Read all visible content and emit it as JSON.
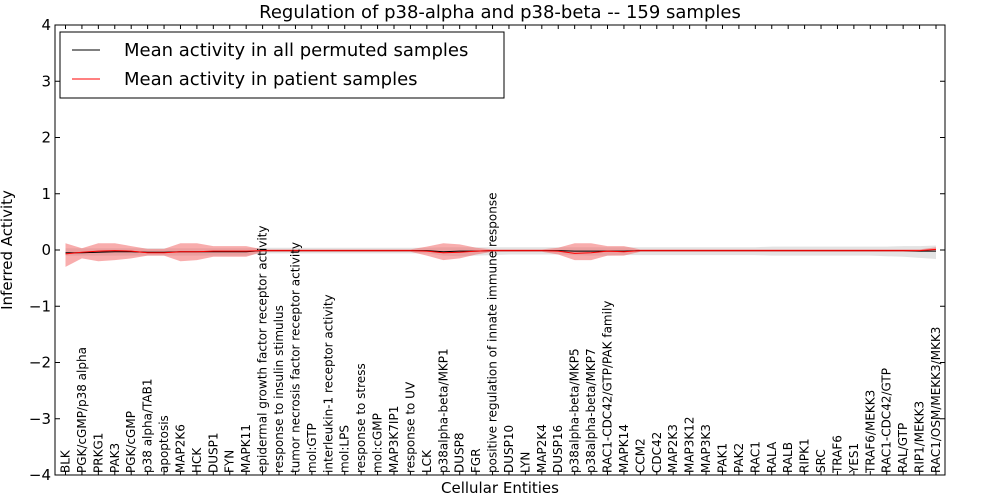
{
  "chart_data": {
    "type": "line",
    "title": "Regulation of p38-alpha and p38-beta -- 159 samples",
    "xlabel": "Cellular Entities",
    "ylabel": "Inferred Activity",
    "ylim": [
      -4,
      4
    ],
    "yticks": [
      "4",
      "3",
      "2",
      "1",
      "0",
      "−1",
      "−2",
      "−3",
      "−4"
    ],
    "grid": false,
    "legend_position": "top-left",
    "categories": [
      "BLK",
      "PGK/cGMP/p38 alpha",
      "PRKG1",
      "PAK3",
      "PGK/cGMP",
      "p38 alpha/TAB1",
      "apoptosis",
      "MAP2K6",
      "HCK",
      "DUSP1",
      "FYN",
      "MAPK11",
      "epidermal growth factor receptor activity",
      "response to insulin stimulus",
      "tumor necrosis factor receptor activity",
      "mol:GTP",
      "interleukin-1 receptor activity",
      "mol:LPS",
      "response to stress",
      "mol:cGMP",
      "MAP3K7IP1",
      "response to UV",
      "LCK",
      "p38alpha-beta/MKP1",
      "DUSP8",
      "FGR",
      "positive regulation of innate immune response",
      "DUSP10",
      "LYN",
      "MAP2K4",
      "DUSP16",
      "p38alpha-beta/MKP5",
      "p38alpha-beta/MKP7",
      "RAC1-CDC42/GTP/PAK family",
      "MAPK14",
      "CCM2",
      "CDC42",
      "MAP2K3",
      "MAP3K12",
      "MAP3K3",
      "PAK1",
      "PAK2",
      "RAC1",
      "RALA",
      "RALB",
      "RIPK1",
      "SRC",
      "TRAF6",
      "YES1",
      "TRAF6/MEKK3",
      "RAC1-CDC42/GTP",
      "RAL/GTP",
      "RIP1/MEKK3",
      "RAC1/OSM/MEKK3/MKK3"
    ],
    "series": [
      {
        "name": "Mean activity in all permuted samples",
        "color": "#000000",
        "values": [
          -0.05,
          -0.05,
          -0.04,
          -0.03,
          -0.03,
          -0.04,
          -0.04,
          -0.03,
          -0.03,
          -0.03,
          -0.03,
          -0.03,
          -0.01,
          -0.01,
          -0.01,
          -0.01,
          -0.01,
          -0.01,
          -0.01,
          -0.01,
          -0.01,
          -0.01,
          -0.01,
          -0.03,
          -0.02,
          -0.02,
          -0.01,
          -0.01,
          -0.01,
          -0.01,
          -0.01,
          -0.02,
          -0.02,
          -0.02,
          -0.02,
          -0.01,
          -0.01,
          -0.01,
          -0.01,
          -0.01,
          -0.01,
          -0.01,
          -0.01,
          -0.01,
          -0.01,
          -0.01,
          -0.01,
          -0.01,
          -0.01,
          -0.01,
          -0.01,
          -0.01,
          -0.02,
          -0.02
        ],
        "band_upper": [
          0.03,
          0.03,
          0.03,
          0.03,
          0.03,
          0.03,
          0.03,
          0.03,
          0.03,
          0.03,
          0.03,
          0.03,
          0.04,
          0.04,
          0.04,
          0.04,
          0.04,
          0.04,
          0.04,
          0.04,
          0.04,
          0.04,
          0.04,
          0.05,
          0.05,
          0.05,
          0.05,
          0.05,
          0.05,
          0.05,
          0.05,
          0.05,
          0.05,
          0.05,
          0.05,
          0.05,
          0.05,
          0.05,
          0.05,
          0.05,
          0.05,
          0.05,
          0.05,
          0.06,
          0.06,
          0.06,
          0.06,
          0.06,
          0.06,
          0.06,
          0.06,
          0.07,
          0.07,
          0.08
        ],
        "band_lower": [
          -0.1,
          -0.1,
          -0.1,
          -0.1,
          -0.1,
          -0.1,
          -0.1,
          -0.1,
          -0.1,
          -0.1,
          -0.1,
          -0.1,
          -0.06,
          -0.06,
          -0.06,
          -0.06,
          -0.06,
          -0.06,
          -0.06,
          -0.06,
          -0.06,
          -0.06,
          -0.06,
          -0.1,
          -0.11,
          -0.1,
          -0.09,
          -0.08,
          -0.08,
          -0.08,
          -0.08,
          -0.09,
          -0.1,
          -0.1,
          -0.09,
          -0.09,
          -0.09,
          -0.09,
          -0.09,
          -0.09,
          -0.09,
          -0.09,
          -0.09,
          -0.1,
          -0.1,
          -0.1,
          -0.1,
          -0.1,
          -0.1,
          -0.1,
          -0.11,
          -0.12,
          -0.14,
          -0.16
        ]
      },
      {
        "name": "Mean activity in patient samples",
        "color": "#ff0000",
        "values": [
          -0.07,
          -0.04,
          -0.02,
          -0.01,
          -0.02,
          -0.05,
          -0.05,
          -0.03,
          -0.03,
          -0.02,
          -0.02,
          -0.02,
          -0.01,
          -0.01,
          -0.01,
          -0.01,
          -0.01,
          -0.01,
          -0.01,
          -0.01,
          -0.01,
          -0.01,
          -0.02,
          -0.05,
          -0.04,
          -0.02,
          -0.01,
          -0.01,
          -0.01,
          -0.01,
          -0.02,
          -0.06,
          -0.05,
          -0.02,
          -0.03,
          -0.01,
          -0.01,
          -0.01,
          -0.01,
          -0.01,
          -0.01,
          -0.01,
          -0.01,
          -0.01,
          -0.01,
          -0.01,
          -0.01,
          -0.01,
          -0.01,
          -0.01,
          -0.01,
          -0.01,
          -0.01,
          0.01
        ],
        "band_upper": [
          0.12,
          0.03,
          0.12,
          0.12,
          0.07,
          0.02,
          0.02,
          0.12,
          0.12,
          0.07,
          0.07,
          0.07,
          0.01,
          0.01,
          0.01,
          0.01,
          0.01,
          0.01,
          0.01,
          0.01,
          0.01,
          0.01,
          0.06,
          0.12,
          0.1,
          0.04,
          0.01,
          0.01,
          0.01,
          0.01,
          0.04,
          0.12,
          0.12,
          0.07,
          0.07,
          0.01,
          0.01,
          0.01,
          0.01,
          0.01,
          0.01,
          0.01,
          0.01,
          0.01,
          0.01,
          0.01,
          0.01,
          0.01,
          0.01,
          0.01,
          0.01,
          0.01,
          0.01,
          0.05
        ],
        "band_lower": [
          -0.3,
          -0.15,
          -0.2,
          -0.18,
          -0.15,
          -0.1,
          -0.1,
          -0.2,
          -0.18,
          -0.12,
          -0.12,
          -0.12,
          -0.03,
          -0.03,
          -0.03,
          -0.03,
          -0.03,
          -0.03,
          -0.03,
          -0.03,
          -0.03,
          -0.03,
          -0.1,
          -0.18,
          -0.15,
          -0.08,
          -0.03,
          -0.03,
          -0.03,
          -0.03,
          -0.08,
          -0.18,
          -0.18,
          -0.1,
          -0.1,
          -0.03,
          -0.03,
          -0.03,
          -0.03,
          -0.03,
          -0.03,
          -0.03,
          -0.03,
          -0.03,
          -0.03,
          -0.03,
          -0.03,
          -0.03,
          -0.03,
          -0.03,
          -0.03,
          -0.03,
          -0.03,
          -0.01
        ]
      }
    ]
  }
}
